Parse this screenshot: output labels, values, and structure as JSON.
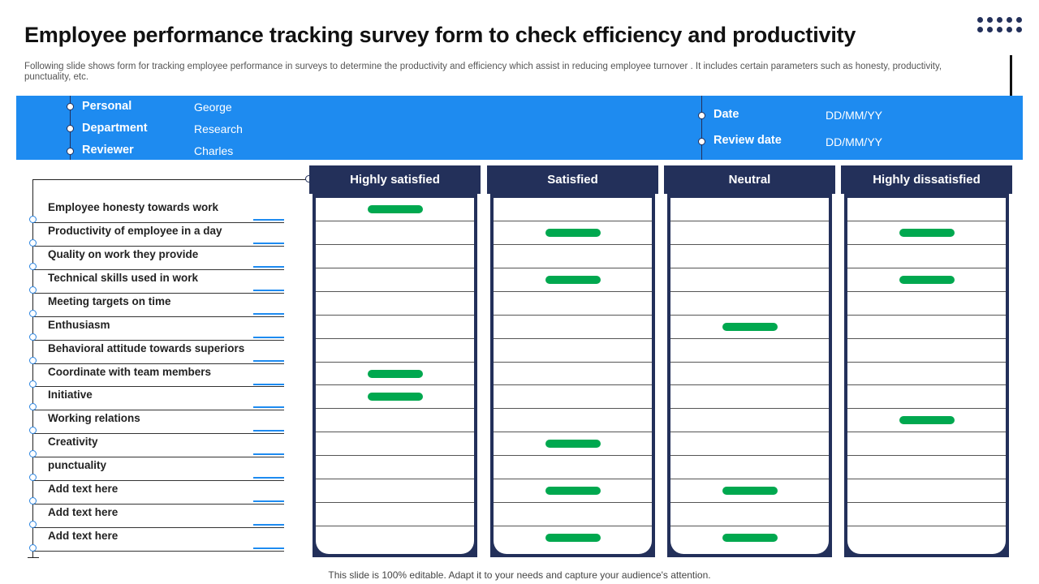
{
  "title": "Employee performance tracking survey form to check efficiency and productivity",
  "subtitle": "Following slide shows form for tracking employee performance in surveys to determine the productivity and efficiency which assist in reducing employee turnover .  It includes certain parameters such as honesty, productivity, punctuality, etc.",
  "info": {
    "left": [
      {
        "label": "Personal",
        "value": "George"
      },
      {
        "label": "Department",
        "value": "Research"
      },
      {
        "label": "Reviewer",
        "value": "Charles"
      }
    ],
    "right": [
      {
        "label": "Date",
        "value": "DD/MM/YY"
      },
      {
        "label": "Review date",
        "value": "DD/MM/YY"
      }
    ]
  },
  "columns": [
    "Highly satisfied",
    "Satisfied",
    "Neutral",
    "Highly dissatisfied"
  ],
  "criteria": [
    {
      "label": "Employee honesty  towards work",
      "marks": [
        "Highly satisfied"
      ]
    },
    {
      "label": "Productivity of employee in a day",
      "marks": [
        "Satisfied",
        "Highly dissatisfied"
      ]
    },
    {
      "label": "Quality on work they provide",
      "marks": []
    },
    {
      "label": "Technical skills used in work",
      "marks": [
        "Satisfied",
        "Highly dissatisfied"
      ]
    },
    {
      "label": "Meeting targets on time",
      "marks": []
    },
    {
      "label": "Enthusiasm",
      "marks": [
        "Neutral"
      ]
    },
    {
      "label": "Behavioral  attitude towards superiors",
      "marks": []
    },
    {
      "label": "Coordinate with team members",
      "marks": [
        "Highly satisfied"
      ]
    },
    {
      "label": "Initiative",
      "marks": [
        "Highly satisfied"
      ]
    },
    {
      "label": "Working relations",
      "marks": [
        "Highly dissatisfied"
      ]
    },
    {
      "label": "Creativity",
      "marks": [
        "Satisfied"
      ]
    },
    {
      "label": "punctuality",
      "marks": []
    },
    {
      "label": "Add text here",
      "marks": [
        "Satisfied",
        "Neutral"
      ]
    },
    {
      "label": "Add text here",
      "marks": []
    },
    {
      "label": "Add text here",
      "marks": [
        "Satisfied",
        "Neutral"
      ]
    }
  ],
  "colors": {
    "banner": "#1e8bf0",
    "navy": "#23305a",
    "mark": "#00a84f"
  },
  "footer": "This slide is 100% editable. Adapt it to your needs and capture your audience's attention."
}
